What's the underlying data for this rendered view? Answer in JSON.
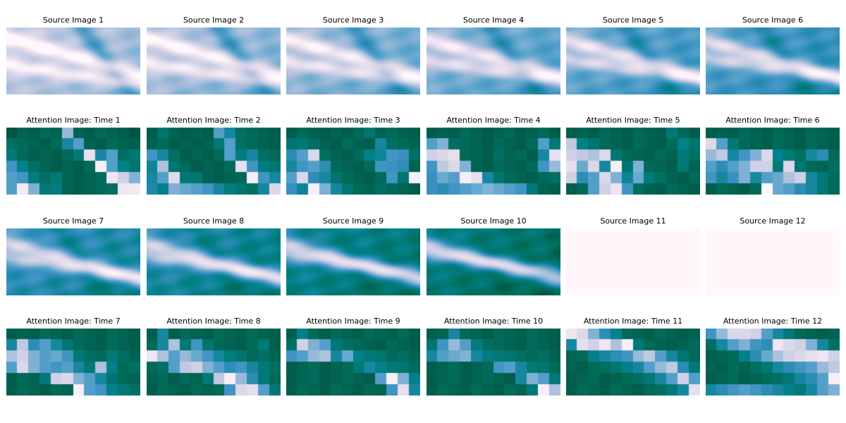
{
  "figure": {
    "colormap": "PuBuGn",
    "colormap_stops": [
      "#fff7fb",
      "#ece2f0",
      "#d0d1e6",
      "#a6bddb",
      "#67a9cf",
      "#3690c0",
      "#02818a",
      "#016c59",
      "#014636"
    ]
  },
  "chart_data": [
    {
      "type": "heatmap",
      "title": "Source Image 1",
      "kind": "source",
      "index": 1,
      "phase": 0.0,
      "value_range": [
        0,
        1
      ]
    },
    {
      "type": "heatmap",
      "title": "Source Image 2",
      "kind": "source",
      "index": 2,
      "phase": 0.1,
      "value_range": [
        0,
        1
      ]
    },
    {
      "type": "heatmap",
      "title": "Source Image 3",
      "kind": "source",
      "index": 3,
      "phase": 0.2,
      "value_range": [
        0,
        1
      ]
    },
    {
      "type": "heatmap",
      "title": "Source Image 4",
      "kind": "source",
      "index": 4,
      "phase": 0.3,
      "value_range": [
        0,
        1
      ]
    },
    {
      "type": "heatmap",
      "title": "Source Image 5",
      "kind": "source",
      "index": 5,
      "phase": 0.4,
      "value_range": [
        0,
        1
      ]
    },
    {
      "type": "heatmap",
      "title": "Source Image 6",
      "kind": "source",
      "index": 6,
      "phase": 0.5,
      "value_range": [
        0,
        1
      ]
    },
    {
      "type": "heatmap",
      "title": "Attention Image: Time 1",
      "kind": "attention",
      "rows": 6,
      "cols": 12,
      "values": [
        [
          0.95,
          0.9,
          0.92,
          0.88,
          0.9,
          0.4,
          0.9,
          0.92,
          0.88,
          0.9,
          0.92,
          0.95
        ],
        [
          0.85,
          0.88,
          0.9,
          0.92,
          0.88,
          0.7,
          0.55,
          0.9,
          0.92,
          0.88,
          0.9,
          0.92
        ],
        [
          0.8,
          0.88,
          0.92,
          0.9,
          0.92,
          0.88,
          0.8,
          0.15,
          0.7,
          0.55,
          0.85,
          0.8
        ],
        [
          0.6,
          0.75,
          0.85,
          0.9,
          0.92,
          0.9,
          0.92,
          0.88,
          0.05,
          0.55,
          0.75,
          0.82
        ],
        [
          0.55,
          0.6,
          0.78,
          0.85,
          0.8,
          0.9,
          0.92,
          0.9,
          0.88,
          0.1,
          0.25,
          0.45
        ],
        [
          0.55,
          0.08,
          0.45,
          0.8,
          0.78,
          0.9,
          0.92,
          0.9,
          0.88,
          0.85,
          0.1,
          0.08
        ]
      ]
    },
    {
      "type": "heatmap",
      "title": "Attention Image: Time 2",
      "kind": "attention",
      "rows": 6,
      "cols": 12,
      "values": [
        [
          0.92,
          0.82,
          0.9,
          0.92,
          0.9,
          0.92,
          0.55,
          0.7,
          0.85,
          0.88,
          0.9,
          0.92
        ],
        [
          0.9,
          0.88,
          0.92,
          0.9,
          0.92,
          0.9,
          0.8,
          0.55,
          0.85,
          0.88,
          0.9,
          0.92
        ],
        [
          0.6,
          0.7,
          0.85,
          0.92,
          0.9,
          0.92,
          0.88,
          0.55,
          0.78,
          0.7,
          0.85,
          0.88
        ],
        [
          0.72,
          0.35,
          0.82,
          0.88,
          0.92,
          0.9,
          0.92,
          0.88,
          0.15,
          0.6,
          0.78,
          0.82
        ],
        [
          0.7,
          0.55,
          0.18,
          0.8,
          0.82,
          0.9,
          0.92,
          0.9,
          0.88,
          0.05,
          0.6,
          0.7
        ],
        [
          0.68,
          0.75,
          0.45,
          0.5,
          0.55,
          0.6,
          0.7,
          0.78,
          0.82,
          0.85,
          0.7,
          0.2
        ]
      ]
    },
    {
      "type": "heatmap",
      "title": "Attention Image: Time 3",
      "kind": "attention",
      "rows": 6,
      "cols": 12,
      "values": [
        [
          0.92,
          0.88,
          0.9,
          0.92,
          0.9,
          0.92,
          0.88,
          0.82,
          0.9,
          0.88,
          0.9,
          0.92
        ],
        [
          0.82,
          0.8,
          0.85,
          0.9,
          0.92,
          0.88,
          0.9,
          0.92,
          0.7,
          0.85,
          0.88,
          0.9
        ],
        [
          0.65,
          0.55,
          0.2,
          0.85,
          0.9,
          0.92,
          0.88,
          0.75,
          0.72,
          0.6,
          0.62,
          0.85
        ],
        [
          0.7,
          0.6,
          0.55,
          0.65,
          0.88,
          0.9,
          0.92,
          0.88,
          0.6,
          0.62,
          0.65,
          0.9
        ],
        [
          0.55,
          0.2,
          0.65,
          0.7,
          0.82,
          0.88,
          0.9,
          0.92,
          0.88,
          0.6,
          0.82,
          0.05
        ],
        [
          0.62,
          0.72,
          0.05,
          0.45,
          0.7,
          0.82,
          0.88,
          0.9,
          0.85,
          0.88,
          0.9,
          0.92
        ]
      ]
    },
    {
      "type": "heatmap",
      "title": "Attention Image: Time 4",
      "kind": "attention",
      "rows": 6,
      "cols": 12,
      "values": [
        [
          0.92,
          0.9,
          0.92,
          0.88,
          0.9,
          0.92,
          0.9,
          0.88,
          0.92,
          0.9,
          0.88,
          0.92
        ],
        [
          0.55,
          0.45,
          0.85,
          0.88,
          0.9,
          0.92,
          0.88,
          0.9,
          0.92,
          0.88,
          0.55,
          0.8
        ],
        [
          0.25,
          0.2,
          0.15,
          0.88,
          0.9,
          0.92,
          0.85,
          0.9,
          0.88,
          0.92,
          0.7,
          0.15
        ],
        [
          0.6,
          0.3,
          0.2,
          0.45,
          0.9,
          0.92,
          0.88,
          0.9,
          0.92,
          0.88,
          0.6,
          0.4
        ],
        [
          0.62,
          0.5,
          0.55,
          0.05,
          0.15,
          0.7,
          0.82,
          0.88,
          0.9,
          0.92,
          0.88,
          0.85
        ],
        [
          0.62,
          0.65,
          0.6,
          0.55,
          0.5,
          0.45,
          0.5,
          0.55,
          0.6,
          0.8,
          0.9,
          0.92
        ]
      ]
    },
    {
      "type": "heatmap",
      "title": "Attention Image: Time 5",
      "kind": "attention",
      "rows": 6,
      "cols": 12,
      "values": [
        [
          0.92,
          0.9,
          0.92,
          0.88,
          0.9,
          0.92,
          0.88,
          0.9,
          0.92,
          0.8,
          0.88,
          0.92
        ],
        [
          0.3,
          0.75,
          0.82,
          0.88,
          0.9,
          0.92,
          0.88,
          0.9,
          0.92,
          0.88,
          0.75,
          0.82
        ],
        [
          0.25,
          0.3,
          0.35,
          0.2,
          0.8,
          0.88,
          0.9,
          0.92,
          0.88,
          0.9,
          0.8,
          0.85
        ],
        [
          0.15,
          0.5,
          0.2,
          0.7,
          0.05,
          0.82,
          0.45,
          0.88,
          0.9,
          0.92,
          0.8,
          0.9
        ],
        [
          0.25,
          0.65,
          0.55,
          0.2,
          0.45,
          0.72,
          0.5,
          0.8,
          0.85,
          0.9,
          0.92,
          0.88
        ],
        [
          0.92,
          0.88,
          0.55,
          0.25,
          0.12,
          0.6,
          0.85,
          0.9,
          0.92,
          0.88,
          0.9,
          0.92
        ]
      ]
    },
    {
      "type": "heatmap",
      "title": "Attention Image: Time 6",
      "kind": "attention",
      "rows": 6,
      "cols": 12,
      "values": [
        [
          0.92,
          0.9,
          0.92,
          0.88,
          0.9,
          0.92,
          0.88,
          0.9,
          0.92,
          0.88,
          0.9,
          0.92
        ],
        [
          0.2,
          0.55,
          0.8,
          0.88,
          0.9,
          0.92,
          0.88,
          0.9,
          0.92,
          0.88,
          0.9,
          0.92
        ],
        [
          0.4,
          0.3,
          0.7,
          0.6,
          0.45,
          0.2,
          0.75,
          0.8,
          0.85,
          0.7,
          0.65,
          0.88
        ],
        [
          0.55,
          0.65,
          0.55,
          0.45,
          0.25,
          0.25,
          0.8,
          0.2,
          0.82,
          0.88,
          0.9,
          0.85
        ],
        [
          0.6,
          0.7,
          0.62,
          0.45,
          0.7,
          0.55,
          0.5,
          0.35,
          0.25,
          0.7,
          0.8,
          0.88
        ],
        [
          0.92,
          0.88,
          0.9,
          0.92,
          0.88,
          0.0,
          0.5,
          0.55,
          0.65,
          0.7,
          0.8,
          0.88
        ]
      ]
    },
    {
      "type": "heatmap",
      "title": "Source Image 7",
      "kind": "source",
      "index": 7,
      "phase": 0.62,
      "value_range": [
        0,
        1
      ]
    },
    {
      "type": "heatmap",
      "title": "Source Image 8",
      "kind": "source",
      "index": 8,
      "phase": 0.72,
      "value_range": [
        0,
        1
      ]
    },
    {
      "type": "heatmap",
      "title": "Source Image 9",
      "kind": "source",
      "index": 9,
      "phase": 0.82,
      "value_range": [
        0,
        1
      ]
    },
    {
      "type": "heatmap",
      "title": "Source Image 10",
      "kind": "source",
      "index": 10,
      "phase": 0.92,
      "value_range": [
        0,
        1
      ]
    },
    {
      "type": "heatmap",
      "title": "Source Image 11",
      "kind": "source",
      "index": 11,
      "blank": true,
      "value_range": [
        0,
        1
      ]
    },
    {
      "type": "heatmap",
      "title": "Source Image 12",
      "kind": "source",
      "index": 12,
      "blank": true,
      "value_range": [
        0,
        1
      ]
    },
    {
      "type": "heatmap",
      "title": "Attention Image: Time 7",
      "kind": "attention",
      "rows": 6,
      "cols": 12,
      "values": [
        [
          0.92,
          0.9,
          0.92,
          0.88,
          0.9,
          0.92,
          0.88,
          0.9,
          0.92,
          0.88,
          0.9,
          0.92
        ],
        [
          0.7,
          0.3,
          0.65,
          0.55,
          0.7,
          0.82,
          0.88,
          0.9,
          0.92,
          0.88,
          0.9,
          0.92
        ],
        [
          0.35,
          0.25,
          0.45,
          0.55,
          0.5,
          0.6,
          0.8,
          0.85,
          0.88,
          0.8,
          0.85,
          0.9
        ],
        [
          0.55,
          0.2,
          0.45,
          0.55,
          0.6,
          0.55,
          0.7,
          0.8,
          0.35,
          0.75,
          0.88,
          0.85
        ],
        [
          0.92,
          0.88,
          0.9,
          0.8,
          0.25,
          0.2,
          0.45,
          0.55,
          0.7,
          0.82,
          0.88,
          0.9
        ],
        [
          0.92,
          0.88,
          0.9,
          0.92,
          0.88,
          0.9,
          0.05,
          0.55,
          0.6,
          0.75,
          0.8,
          0.85
        ]
      ]
    },
    {
      "type": "heatmap",
      "title": "Attention Image: Time 8",
      "kind": "attention",
      "rows": 6,
      "cols": 12,
      "values": [
        [
          0.92,
          0.7,
          0.92,
          0.88,
          0.9,
          0.92,
          0.88,
          0.9,
          0.92,
          0.88,
          0.9,
          0.92
        ],
        [
          0.88,
          0.7,
          0.35,
          0.8,
          0.6,
          0.82,
          0.88,
          0.9,
          0.92,
          0.88,
          0.8,
          0.92
        ],
        [
          0.1,
          0.35,
          0.55,
          0.4,
          0.5,
          0.6,
          0.7,
          0.78,
          0.82,
          0.88,
          0.85,
          0.9
        ],
        [
          0.88,
          0.85,
          0.55,
          0.3,
          0.25,
          0.45,
          0.55,
          0.65,
          0.6,
          0.7,
          0.8,
          0.85
        ],
        [
          0.9,
          0.88,
          0.92,
          0.88,
          0.9,
          0.8,
          0.3,
          0.05,
          0.4,
          0.65,
          0.8,
          0.88
        ],
        [
          0.92,
          0.88,
          0.9,
          0.92,
          0.88,
          0.9,
          0.88,
          0.6,
          0.2,
          0.15,
          0.55,
          0.8
        ]
      ]
    },
    {
      "type": "heatmap",
      "title": "Attention Image: Time 9",
      "kind": "attention",
      "rows": 6,
      "cols": 12,
      "values": [
        [
          0.92,
          0.75,
          0.88,
          0.92,
          0.88,
          0.9,
          0.92,
          0.88,
          0.9,
          0.92,
          0.88,
          0.92
        ],
        [
          0.85,
          0.25,
          0.45,
          0.55,
          0.8,
          0.85,
          0.88,
          0.9,
          0.92,
          0.88,
          0.9,
          0.92
        ],
        [
          0.6,
          0.55,
          0.4,
          0.35,
          0.7,
          0.5,
          0.75,
          0.8,
          0.82,
          0.88,
          0.85,
          0.9
        ],
        [
          0.92,
          0.9,
          0.88,
          0.92,
          0.9,
          0.88,
          0.8,
          0.7,
          0.75,
          0.8,
          0.82,
          0.88
        ],
        [
          0.92,
          0.9,
          0.88,
          0.92,
          0.9,
          0.88,
          0.9,
          0.92,
          0.55,
          0.05,
          0.45,
          0.75
        ],
        [
          0.92,
          0.88,
          0.9,
          0.92,
          0.88,
          0.9,
          0.92,
          0.88,
          0.9,
          0.6,
          0.15,
          0.7
        ]
      ]
    },
    {
      "type": "heatmap",
      "title": "Attention Image: Time 10",
      "kind": "attention",
      "rows": 6,
      "cols": 12,
      "values": [
        [
          0.92,
          0.9,
          0.7,
          0.88,
          0.9,
          0.92,
          0.88,
          0.9,
          0.92,
          0.88,
          0.9,
          0.92
        ],
        [
          0.82,
          0.6,
          0.4,
          0.55,
          0.78,
          0.85,
          0.88,
          0.9,
          0.92,
          0.88,
          0.9,
          0.92
        ],
        [
          0.7,
          0.55,
          0.5,
          0.45,
          0.7,
          0.78,
          0.8,
          0.82,
          0.85,
          0.88,
          0.85,
          0.9
        ],
        [
          0.92,
          0.9,
          0.88,
          0.92,
          0.9,
          0.88,
          0.6,
          0.55,
          0.7,
          0.8,
          0.82,
          0.88
        ],
        [
          0.92,
          0.9,
          0.88,
          0.92,
          0.9,
          0.88,
          0.9,
          0.92,
          0.7,
          0.45,
          0.55,
          0.8
        ],
        [
          0.92,
          0.88,
          0.9,
          0.92,
          0.88,
          0.9,
          0.92,
          0.88,
          0.9,
          0.8,
          0.05,
          0.35
        ]
      ]
    },
    {
      "type": "heatmap",
      "title": "Attention Image: Time 11",
      "kind": "attention",
      "rows": 6,
      "cols": 12,
      "values": [
        [
          0.1,
          0.2,
          0.45,
          0.65,
          0.75,
          0.88,
          0.9,
          0.92,
          0.88,
          0.9,
          0.92,
          0.9
        ],
        [
          0.7,
          0.15,
          0.25,
          0.1,
          0.35,
          0.05,
          0.8,
          0.88,
          0.9,
          0.92,
          0.9,
          0.88
        ],
        [
          0.9,
          0.88,
          0.75,
          0.7,
          0.65,
          0.6,
          0.4,
          0.3,
          0.55,
          0.7,
          0.82,
          0.88
        ],
        [
          0.9,
          0.92,
          0.88,
          0.85,
          0.82,
          0.75,
          0.7,
          0.55,
          0.4,
          0.3,
          0.65,
          0.8
        ],
        [
          0.92,
          0.9,
          0.88,
          0.92,
          0.9,
          0.88,
          0.85,
          0.8,
          0.7,
          0.55,
          0.25,
          0.55
        ],
        [
          0.92,
          0.88,
          0.9,
          0.92,
          0.88,
          0.9,
          0.92,
          0.88,
          0.85,
          0.8,
          0.7,
          0.15
        ]
      ]
    },
    {
      "type": "heatmap",
      "title": "Attention Image: Time 12",
      "kind": "attention",
      "rows": 6,
      "cols": 12,
      "values": [
        [
          0.6,
          0.4,
          0.2,
          0.2,
          0.25,
          0.55,
          0.7,
          0.8,
          0.88,
          0.9,
          0.92,
          0.9
        ],
        [
          0.85,
          0.7,
          0.55,
          0.45,
          0.6,
          0.65,
          0.1,
          0.2,
          0.25,
          0.45,
          0.7,
          0.85
        ],
        [
          0.92,
          0.9,
          0.88,
          0.75,
          0.65,
          0.5,
          0.35,
          0.25,
          0.2,
          0.15,
          0.1,
          0.25
        ],
        [
          0.9,
          0.92,
          0.88,
          0.9,
          0.85,
          0.8,
          0.7,
          0.65,
          0.6,
          0.55,
          0.4,
          0.3
        ],
        [
          0.92,
          0.9,
          0.88,
          0.92,
          0.9,
          0.88,
          0.85,
          0.8,
          0.7,
          0.65,
          0.55,
          0.05
        ],
        [
          0.7,
          0.65,
          0.6,
          0.55,
          0.6,
          0.65,
          0.7,
          0.75,
          0.8,
          0.7,
          0.55,
          0.45
        ]
      ]
    }
  ]
}
